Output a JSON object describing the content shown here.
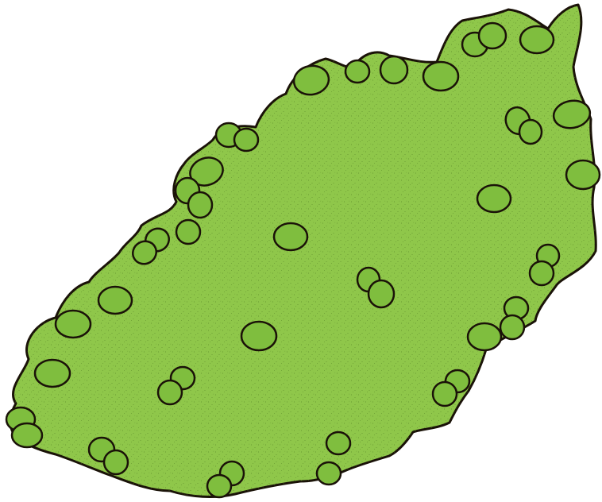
{
  "scene": {
    "subject": "green-leafy-blob-with-bumps",
    "colors": {
      "background": "#ffffff",
      "fill": "#8fc74a",
      "bump_fill": "#7fbe3e",
      "speckle": "#4e7a22",
      "outline": "#1a1208"
    }
  }
}
